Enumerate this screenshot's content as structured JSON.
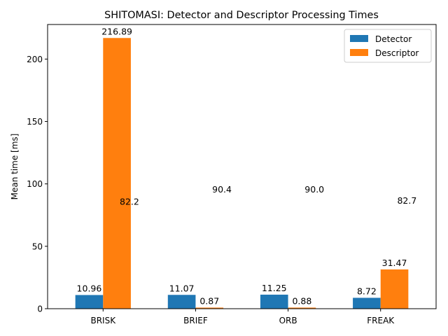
{
  "chart_data": {
    "type": "bar",
    "title": "SHITOMASI: Detector and Descriptor Processing Times",
    "xlabel": "",
    "ylabel": "Mean time [ms]",
    "ylim": [
      0,
      227.7
    ],
    "yticks": [
      0,
      50,
      100,
      150,
      200
    ],
    "grid": false,
    "legend_position": "top-right",
    "categories": [
      "BRISK",
      "BRIEF",
      "ORB",
      "FREAK"
    ],
    "series": [
      {
        "name": "Detector",
        "color": "#1f77b4",
        "values": [
          10.96,
          11.07,
          11.25,
          8.72
        ],
        "labels": [
          "10.96",
          "11.07",
          "11.25",
          "8.72"
        ]
      },
      {
        "name": "Descriptor",
        "color": "#ff7f0e",
        "values": [
          216.89,
          0.87,
          0.88,
          31.47
        ],
        "labels": [
          "216.89",
          "0.87",
          "0.88",
          "31.47"
        ]
      }
    ],
    "annotations": [
      {
        "text": "82.2",
        "category": "BRISK",
        "y": 86
      },
      {
        "text": "90.4",
        "category": "BRIEF",
        "y": 96
      },
      {
        "text": "90.0",
        "category": "ORB",
        "y": 96
      },
      {
        "text": "82.7",
        "category": "FREAK",
        "y": 87
      }
    ]
  }
}
